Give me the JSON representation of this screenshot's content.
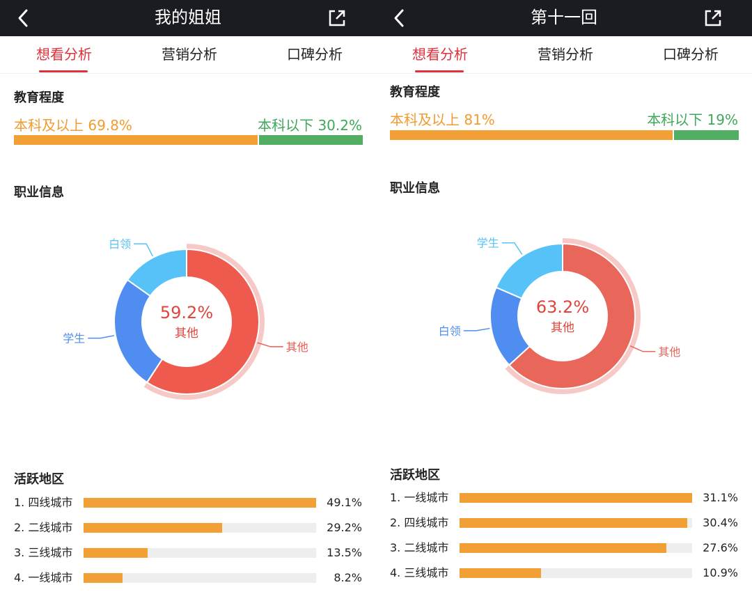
{
  "panels": [
    {
      "title": "我的姐姐",
      "tabs": [
        "想看分析",
        "营销分析",
        "口碑分析"
      ],
      "education": {
        "section_title": "教育程度",
        "above_label": "本科及以上",
        "above_value": "69.8%",
        "above_fraction": 0.698,
        "below_label": "本科以下",
        "below_value": "30.2%"
      },
      "occupation": {
        "section_title": "职业信息",
        "center_value": "59.2%",
        "center_label": "其他",
        "slices": [
          {
            "name": "其他",
            "value": 59.2,
            "color": "#ef5a4f"
          },
          {
            "name": "学生",
            "value": 25.6,
            "color": "#4f8ef0"
          },
          {
            "name": "白领",
            "value": 15.2,
            "color": "#56c2f7"
          }
        ]
      },
      "region": {
        "section_title": "活跃地区",
        "rows": [
          {
            "label": "1. 四线城市",
            "value": "49.1%",
            "fraction": 1.0
          },
          {
            "label": "2. 二线城市",
            "value": "29.2%",
            "fraction": 0.595
          },
          {
            "label": "3. 三线城市",
            "value": "13.5%",
            "fraction": 0.275
          },
          {
            "label": "4. 一线城市",
            "value": "8.2%",
            "fraction": 0.167
          }
        ]
      }
    },
    {
      "title": "第十一回",
      "tabs": [
        "想看分析",
        "营销分析",
        "口碑分析"
      ],
      "education": {
        "section_title": "教育程度",
        "above_label": "本科及以上",
        "above_value": "81%",
        "above_fraction": 0.81,
        "below_label": "本科以下",
        "below_value": "19%"
      },
      "occupation": {
        "section_title": "职业信息",
        "center_value": "63.2%",
        "center_label": "其他",
        "slices": [
          {
            "name": "其他",
            "value": 63.2,
            "color": "#e8665a"
          },
          {
            "name": "白领",
            "value": 18.3,
            "color": "#4f8ef0"
          },
          {
            "name": "学生",
            "value": 18.5,
            "color": "#56c2f7"
          }
        ]
      },
      "region": {
        "section_title": "活跃地区",
        "rows": [
          {
            "label": "1. 一线城市",
            "value": "31.1%",
            "fraction": 1.0
          },
          {
            "label": "2. 四线城市",
            "value": "30.4%",
            "fraction": 0.978
          },
          {
            "label": "3. 二线城市",
            "value": "27.6%",
            "fraction": 0.888
          },
          {
            "label": "4. 三线城市",
            "value": "10.9%",
            "fraction": 0.35
          }
        ]
      }
    }
  ],
  "icons": {
    "back": "chevron-left-icon",
    "share": "share-icon"
  },
  "colors": {
    "accent": "#e0303b",
    "orange": "#f29f35",
    "green": "#51ae62"
  }
}
